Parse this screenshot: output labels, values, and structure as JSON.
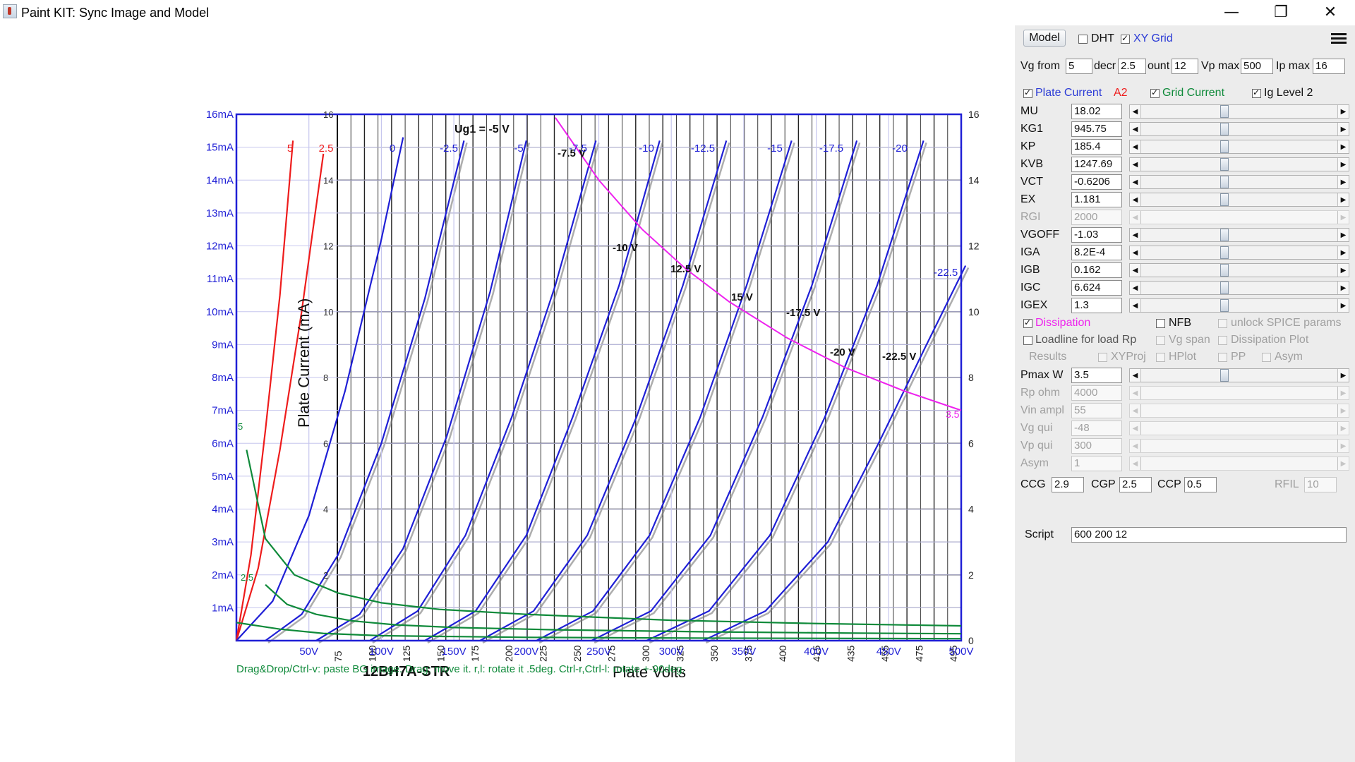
{
  "window": {
    "title": "Paint KIT: Sync Image and Model",
    "controls": {
      "minimize": "—",
      "restore": "❐",
      "close": "✕"
    }
  },
  "plot": {
    "image_title": "12BH7A-STR",
    "x_axis_label": "Plate Volts",
    "y_axis_label": "Plate Current (mA)",
    "grid_label": "Ug1 = -5 V",
    "help_text": "Drag&Drop/Ctrl-v: paste BG image. Drag: move it. r,l: rotate it .5deg. Ctrl-r,Ctrl-l: rotate +-90deg.",
    "model_y_ticks": [
      "1mA",
      "2mA",
      "3mA",
      "4mA",
      "5mA",
      "6mA",
      "7mA",
      "8mA",
      "9mA",
      "10mA",
      "11mA",
      "12mA",
      "13mA",
      "14mA",
      "15mA",
      "16mA"
    ],
    "model_x_ticks": [
      "50V",
      "100V",
      "150V",
      "200V",
      "250V",
      "300V",
      "350V",
      "400V",
      "450V",
      "500V"
    ],
    "image_left_ticks": [
      "2",
      "4",
      "6",
      "8",
      "10",
      "12",
      "14",
      "16"
    ],
    "image_right_ticks": [
      "0",
      "2",
      "4",
      "6",
      "8",
      "10",
      "12",
      "14",
      "16"
    ],
    "image_x_ticks": [
      "75",
      "100",
      "125",
      "150",
      "175",
      "200",
      "225",
      "250",
      "275",
      "300",
      "325",
      "350",
      "375",
      "400",
      "415",
      "435",
      "455",
      "475",
      "495"
    ],
    "top_curve_labels": [
      "5",
      "2.5",
      "0",
      "-2.5",
      "-5",
      "-7.5",
      "-10",
      "-12.5",
      "-15",
      "-17.5",
      "-20"
    ],
    "side_curve_label": "-22.5",
    "grid_current_labels": [
      "5",
      "2.5"
    ],
    "dissipation_label": "3.5",
    "image_curve_labels": [
      "-7.5 V",
      "-10 V",
      "12.5 V",
      "15 V",
      "-17.5 V",
      "-20 V",
      "-22.5 V"
    ]
  },
  "chart_data": {
    "type": "line",
    "title": "12BH7A-STR",
    "xlabel": "Plate Volts",
    "ylabel": "Plate Current (mA)",
    "xlim": [
      0,
      500
    ],
    "ylim": [
      0,
      16
    ],
    "grid": true,
    "series": [
      {
        "name": "5",
        "kind": "plate",
        "color": "#ee1c1c",
        "x": [
          0,
          10,
          20,
          30,
          39
        ],
        "y": [
          0,
          2.6,
          6.4,
          10.5,
          15.2
        ]
      },
      {
        "name": "2.5",
        "kind": "plate",
        "color": "#ee1c1c",
        "x": [
          0,
          15,
          30,
          45,
          60
        ],
        "y": [
          0,
          2.2,
          5.8,
          10,
          14.8
        ]
      },
      {
        "name": "0",
        "kind": "plate",
        "color": "#1f1fd6",
        "x": [
          0,
          25,
          50,
          75,
          100,
          115
        ],
        "y": [
          0,
          1.2,
          3.8,
          7.6,
          12.2,
          15.3
        ]
      },
      {
        "name": "-2.5",
        "kind": "plate",
        "color": "#1f1fd6",
        "x": [
          20,
          45,
          70,
          100,
          130,
          157
        ],
        "y": [
          0,
          0.8,
          2.6,
          6,
          10.4,
          15.2
        ]
      },
      {
        "name": "-5",
        "kind": "plate",
        "color": "#1f1fd6",
        "x": [
          55,
          85,
          115,
          145,
          175,
          200
        ],
        "y": [
          0,
          0.8,
          2.8,
          6.2,
          10.6,
          15.2
        ]
      },
      {
        "name": "-7.5",
        "kind": "plate",
        "color": "#1f1fd6",
        "x": [
          92,
          125,
          158,
          190,
          220,
          248
        ],
        "y": [
          0,
          0.9,
          3.2,
          6.8,
          10.8,
          15.2
        ]
      },
      {
        "name": "-10",
        "kind": "plate",
        "color": "#1f1fd6",
        "x": [
          130,
          165,
          200,
          232,
          264,
          292
        ],
        "y": [
          0,
          0.9,
          3.2,
          6.8,
          10.8,
          15.2
        ]
      },
      {
        "name": "-12.5",
        "kind": "plate",
        "color": "#1f1fd6",
        "x": [
          168,
          205,
          242,
          276,
          308,
          338
        ],
        "y": [
          0,
          0.9,
          3.2,
          6.8,
          10.8,
          15.2
        ]
      },
      {
        "name": "-15",
        "kind": "plate",
        "color": "#1f1fd6",
        "x": [
          207,
          246,
          285,
          320,
          352,
          383
        ],
        "y": [
          0,
          0.9,
          3.2,
          6.8,
          10.8,
          15.2
        ]
      },
      {
        "name": "-17.5",
        "kind": "plate",
        "color": "#1f1fd6",
        "x": [
          245,
          286,
          327,
          363,
          397,
          428
        ],
        "y": [
          0,
          0.9,
          3.2,
          6.8,
          10.8,
          15.2
        ]
      },
      {
        "name": "-20",
        "kind": "plate",
        "color": "#1f1fd6",
        "x": [
          283,
          326,
          368,
          406,
          442,
          474
        ],
        "y": [
          0,
          0.9,
          3.2,
          6.8,
          10.8,
          15.2
        ]
      },
      {
        "name": "-22.5",
        "kind": "plate",
        "color": "#1f1fd6",
        "x": [
          322,
          365,
          408,
          443,
          475,
          503
        ],
        "y": [
          0,
          0.9,
          3.0,
          6.0,
          8.9,
          11.4
        ]
      },
      {
        "name": "5",
        "kind": "grid",
        "color": "#0f8a3a",
        "x": [
          7,
          20,
          40,
          70,
          100,
          140,
          200,
          300,
          400,
          500
        ],
        "y": [
          5.8,
          3.1,
          2.0,
          1.45,
          1.15,
          0.95,
          0.8,
          0.62,
          0.52,
          0.45
        ]
      },
      {
        "name": "2.5",
        "kind": "grid",
        "color": "#0f8a3a",
        "x": [
          20,
          35,
          55,
          80,
          110,
          150,
          220,
          320,
          420,
          500
        ],
        "y": [
          1.7,
          1.1,
          0.8,
          0.6,
          0.48,
          0.4,
          0.33,
          0.27,
          0.23,
          0.21
        ]
      },
      {
        "name": "0",
        "kind": "grid",
        "color": "#0f8a3a",
        "x": [
          0,
          30,
          60,
          100,
          200,
          300,
          500
        ],
        "y": [
          0.55,
          0.35,
          0.22,
          0.15,
          0.1,
          0.08,
          0.06
        ]
      },
      {
        "name": "3.5",
        "kind": "dissipation",
        "color": "#ee22ee",
        "x": [
          220,
          250,
          280,
          310,
          340,
          380,
          420,
          460,
          500
        ],
        "y": [
          15.9,
          14,
          12.5,
          11.3,
          10.3,
          9.2,
          8.3,
          7.6,
          7.0
        ]
      }
    ]
  },
  "panel": {
    "model_button": "Model",
    "dht_label": "DHT",
    "xy_grid_label": "XY Grid",
    "menu_icon": "hamburger-menu-icon",
    "vg_from_label": "Vg from",
    "vg_from_value": "5",
    "decr_label": "decr",
    "decr_value": "2.5",
    "count_label": "ount",
    "count_value": "12",
    "vp_max_label": "Vp max",
    "vp_max_value": "500",
    "ip_max_label": "Ip max",
    "ip_max_value": "16",
    "plate_current_label": "Plate Current",
    "a2_label": "A2",
    "grid_current_label": "Grid Current",
    "ig_level_label": "Ig Level 2",
    "params": [
      {
        "name": "MU",
        "value": "18.02",
        "enabled": true
      },
      {
        "name": "KG1",
        "value": "945.75",
        "enabled": true
      },
      {
        "name": "KP",
        "value": "185.4",
        "enabled": true
      },
      {
        "name": "KVB",
        "value": "1247.69",
        "enabled": true
      },
      {
        "name": "VCT",
        "value": "-0.6206",
        "enabled": true
      },
      {
        "name": "EX",
        "value": "1.181",
        "enabled": true
      },
      {
        "name": "RGI",
        "value": "2000",
        "enabled": false
      },
      {
        "name": "VGOFF",
        "value": "-1.03",
        "enabled": true
      },
      {
        "name": "IGA",
        "value": "8.2E-4",
        "enabled": true
      },
      {
        "name": "IGB",
        "value": "0.162",
        "enabled": true
      },
      {
        "name": "IGC",
        "value": "6.624",
        "enabled": true
      },
      {
        "name": "IGEX",
        "value": "1.3",
        "enabled": true
      }
    ],
    "dissipation_label": "Dissipation",
    "nfb_label": "NFB",
    "unlock_label": "unlock SPICE params",
    "loadline_label": "Loadline for load Rp",
    "vg_span_label": "Vg span",
    "dissipation_plot_label": "Dissipation Plot",
    "results_label": "Results",
    "xyproj_label": "XYProj",
    "hplot_label": "HPlot",
    "pp_label": "PP",
    "asym_label": "Asym",
    "load_params": [
      {
        "name": "Pmax W",
        "value": "3.5",
        "enabled": true
      },
      {
        "name": "Rp ohm",
        "value": "4000",
        "enabled": false
      },
      {
        "name": "Vin ampl",
        "value": "55",
        "enabled": false
      },
      {
        "name": "Vg qui",
        "value": "-48",
        "enabled": false
      },
      {
        "name": "Vp qui",
        "value": "300",
        "enabled": false
      },
      {
        "name": "Asym",
        "value": "1",
        "enabled": false
      }
    ],
    "ccg_label": "CCG",
    "ccg_value": "2.9",
    "cgp_label": "CGP",
    "cgp_value": "2.5",
    "ccp_label": "CCP",
    "ccp_value": "0.5",
    "rfil_label": "RFIL",
    "rfil_value": "10",
    "script_label": "Script",
    "script_value": "600 200 12"
  },
  "colors": {
    "model_blue": "#1f1fd6",
    "grid_green": "#0f8a3a",
    "positive_red": "#ee1c1c",
    "dissipation_magenta": "#ee22ee",
    "panel_bg": "#ececec"
  }
}
